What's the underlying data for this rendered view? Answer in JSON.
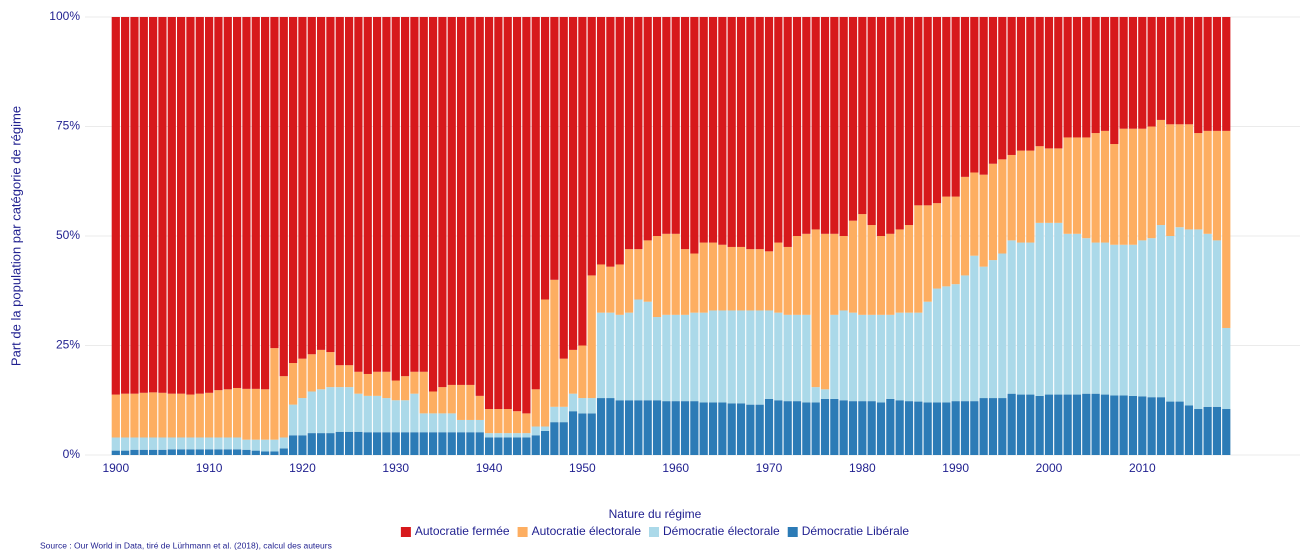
{
  "chart_data": {
    "type": "stacked-bar",
    "y_label": "Part de la population par catégorie de régime",
    "legend_title": "Nature du régime",
    "source": "Source : Our World in Data, tiré de Lürhmann et al. (2018), calcul des auteurs",
    "legend": "bottom",
    "grid": true,
    "x": [
      1900,
      1901,
      1902,
      1903,
      1904,
      1905,
      1906,
      1907,
      1908,
      1909,
      1910,
      1911,
      1912,
      1913,
      1914,
      1915,
      1916,
      1917,
      1918,
      1919,
      1920,
      1921,
      1922,
      1923,
      1924,
      1925,
      1926,
      1927,
      1928,
      1929,
      1930,
      1931,
      1932,
      1933,
      1934,
      1935,
      1936,
      1937,
      1938,
      1939,
      1940,
      1941,
      1942,
      1943,
      1944,
      1945,
      1946,
      1947,
      1948,
      1949,
      1950,
      1951,
      1952,
      1953,
      1954,
      1955,
      1956,
      1957,
      1958,
      1959,
      1960,
      1961,
      1962,
      1963,
      1964,
      1965,
      1966,
      1967,
      1968,
      1969,
      1970,
      1971,
      1972,
      1973,
      1974,
      1975,
      1976,
      1977,
      1978,
      1979,
      1980,
      1981,
      1982,
      1983,
      1984,
      1985,
      1986,
      1987,
      1988,
      1989,
      1990,
      1991,
      1992,
      1993,
      1994,
      1995,
      1996,
      1997,
      1998,
      1999,
      2000,
      2001,
      2002,
      2003,
      2004,
      2005,
      2006,
      2007,
      2008,
      2009,
      2010,
      2011,
      2012,
      2013,
      2014,
      2015,
      2016,
      2017,
      2018,
      2019
    ],
    "xlim": [
      1896.7,
      2026.9
    ],
    "xticks": [
      1900,
      1910,
      1920,
      1930,
      1940,
      1950,
      1960,
      1970,
      1980,
      1990,
      2000,
      2010
    ],
    "ylim": [
      0,
      100
    ],
    "yticks": [
      {
        "value": 0,
        "label": "0%"
      },
      {
        "value": 25,
        "label": "25%"
      },
      {
        "value": 50,
        "label": "50%"
      },
      {
        "value": 75,
        "label": "75%"
      },
      {
        "value": 100,
        "label": "100%"
      }
    ],
    "series": [
      {
        "name": "Autocratie fermée",
        "color": "#d7191c",
        "values": [
          86.2,
          86,
          86,
          85.8,
          85.7,
          85.8,
          86,
          86,
          86.2,
          86,
          85.8,
          85.2,
          85,
          84.7,
          84.9,
          84.9,
          85,
          75.6,
          82,
          79,
          78,
          77,
          76,
          76.5,
          79.5,
          79.5,
          81,
          81.5,
          81,
          81,
          83,
          82,
          81,
          81,
          85.5,
          84.5,
          84,
          84,
          84,
          86.5,
          89.5,
          89.5,
          89.5,
          90,
          90.5,
          85,
          64.5,
          60,
          78,
          76,
          75,
          59,
          56.5,
          57,
          56.5,
          53,
          53,
          51,
          50,
          49.5,
          49.5,
          53,
          54,
          51.5,
          51.5,
          52,
          52.5,
          52.5,
          53,
          53,
          53.5,
          51.5,
          52.5,
          50,
          49.5,
          48.5,
          49.5,
          49.5,
          50,
          46.5,
          45,
          47.5,
          50,
          49.5,
          48.5,
          47.5,
          43,
          43,
          42.5,
          41,
          41,
          36.5,
          35.5,
          36,
          33.5,
          32.5,
          31.5,
          30.5,
          30.5,
          29.5,
          30,
          30,
          27.5,
          27.5,
          27.5,
          26.5,
          26,
          29,
          25.5,
          25.5,
          25.5,
          25,
          23.5,
          24.5,
          24.5,
          24.5,
          26.5,
          26,
          26,
          26
        ]
      },
      {
        "name": "Autocratie électorale",
        "color": "#fdae61",
        "values": [
          9.8,
          10,
          10,
          10.2,
          10.3,
          10.2,
          10,
          10,
          9.8,
          10,
          10.2,
          10.8,
          11,
          11.3,
          11.6,
          11.6,
          11.5,
          20.9,
          14,
          9.5,
          9,
          8.5,
          9,
          8,
          5,
          5,
          5,
          5,
          5.5,
          6,
          4.5,
          5.5,
          5,
          9.5,
          5,
          6,
          6.5,
          8,
          8,
          5.5,
          5.5,
          5.5,
          5.5,
          5,
          4.5,
          8.5,
          29,
          29,
          11,
          10,
          12,
          28,
          11,
          10.5,
          11.5,
          14.5,
          11.5,
          14,
          18.5,
          18.5,
          18.5,
          15,
          13.5,
          16,
          15.5,
          15,
          14.5,
          14.5,
          14,
          14,
          13.5,
          16,
          15.5,
          18,
          18.5,
          36,
          35.5,
          18.5,
          17,
          21,
          23,
          20.5,
          18,
          18.5,
          19,
          20,
          24.5,
          22,
          19.5,
          20.5,
          20,
          22.5,
          19,
          21,
          22,
          21.5,
          19.5,
          21,
          21,
          17.5,
          17,
          17,
          22,
          22,
          23,
          25,
          25.5,
          23,
          26.5,
          26.5,
          25.5,
          25.5,
          24,
          25.5,
          23.5,
          24,
          22,
          23.5,
          25,
          45
        ]
      },
      {
        "name": "Démocratie électorale",
        "color": "#abd9e9",
        "values": [
          3,
          3,
          2.8,
          2.8,
          2.8,
          2.8,
          2.7,
          2.7,
          2.7,
          2.7,
          2.7,
          2.7,
          2.7,
          2.7,
          2.3,
          2.5,
          2.7,
          2.7,
          2.5,
          7,
          8.5,
          9.5,
          10,
          10.5,
          10.2,
          10.2,
          8.7,
          8.3,
          8.3,
          7.8,
          7.3,
          7.3,
          8.8,
          4.3,
          4.3,
          4.3,
          4.3,
          2.8,
          2.8,
          2.8,
          1,
          1,
          1,
          1,
          1,
          2,
          1,
          3.5,
          3.5,
          4,
          3.5,
          3.5,
          19.5,
          19.5,
          19.5,
          20,
          23,
          22.5,
          19,
          19.7,
          19.7,
          19.7,
          20.2,
          20.5,
          21,
          21,
          21.2,
          21.2,
          21.5,
          21.5,
          20.2,
          20,
          19.7,
          19.7,
          20,
          3.5,
          2.2,
          19.2,
          20.5,
          20.2,
          19.7,
          19.7,
          20,
          19.2,
          20,
          20.2,
          20.3,
          23,
          26,
          26.5,
          26.7,
          28.7,
          33.2,
          30,
          31.5,
          33,
          35,
          34.7,
          34.7,
          39.5,
          39.2,
          39.2,
          36.7,
          36.7,
          35.5,
          34.5,
          34.7,
          34.4,
          34.4,
          34.5,
          35.6,
          36.3,
          39.3,
          37.8,
          39.8,
          40.2,
          41,
          39.5,
          38,
          18.5
        ]
      },
      {
        "name": "Démocratie Libérale",
        "color": "#2c7bb6",
        "values": [
          1,
          1,
          1.2,
          1.2,
          1.2,
          1.2,
          1.3,
          1.3,
          1.3,
          1.3,
          1.3,
          1.3,
          1.3,
          1.3,
          1.2,
          1,
          0.8,
          0.8,
          1.5,
          4.5,
          4.5,
          5,
          5,
          5,
          5.3,
          5.3,
          5.3,
          5.2,
          5.2,
          5.2,
          5.2,
          5.2,
          5.2,
          5.2,
          5.2,
          5.2,
          5.2,
          5.2,
          5.2,
          5.2,
          4,
          4,
          4,
          4,
          4,
          4.5,
          5.5,
          7.5,
          7.5,
          10,
          9.5,
          9.5,
          13,
          13,
          12.5,
          12.5,
          12.5,
          12.5,
          12.5,
          12.3,
          12.3,
          12.3,
          12.3,
          12,
          12,
          12,
          11.8,
          11.8,
          11.5,
          11.5,
          12.8,
          12.5,
          12.3,
          12.3,
          12,
          12,
          12.8,
          12.8,
          12.5,
          12.3,
          12.3,
          12.3,
          12,
          12.8,
          12.5,
          12.3,
          12.2,
          12,
          12,
          12,
          12.3,
          12.3,
          12.3,
          13,
          13,
          13,
          14,
          13.8,
          13.8,
          13.5,
          13.8,
          13.8,
          13.8,
          13.8,
          14,
          14,
          13.8,
          13.6,
          13.6,
          13.5,
          13.4,
          13.2,
          13.2,
          12.2,
          12.2,
          11.3,
          10.5,
          11,
          11,
          10.5
        ]
      }
    ]
  }
}
